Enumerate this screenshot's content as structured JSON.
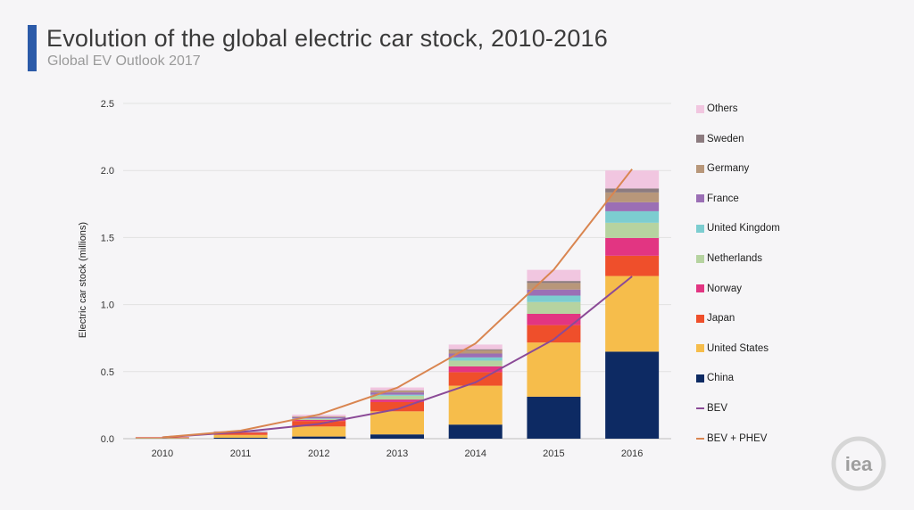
{
  "header": {
    "title": "Evolution of the global electric car stock, 2010-2016",
    "subtitle": "Global EV Outlook 2017"
  },
  "logo": {
    "text": "iea"
  },
  "chart_data": {
    "type": "bar",
    "stacked": true,
    "categories": [
      "2010",
      "2011",
      "2012",
      "2013",
      "2014",
      "2015",
      "2016"
    ],
    "ylabel": "Electric car stock (millions)",
    "xlabel": "",
    "ylim": [
      0,
      2.5
    ],
    "yticks": [
      "0.0",
      "0.5",
      "1.0",
      "1.5",
      "2.0",
      "2.5"
    ],
    "grid": true,
    "legend": "right",
    "series": [
      {
        "name": "China",
        "color": "#0d2a63",
        "values": [
          0.002,
          0.007,
          0.016,
          0.032,
          0.105,
          0.313,
          0.649
        ]
      },
      {
        "name": "United States",
        "color": "#f6bd4b",
        "values": [
          0.004,
          0.021,
          0.075,
          0.172,
          0.29,
          0.404,
          0.564
        ]
      },
      {
        "name": "Japan",
        "color": "#ef4f2b",
        "values": [
          0.004,
          0.017,
          0.041,
          0.069,
          0.101,
          0.13,
          0.151
        ]
      },
      {
        "name": "Norway",
        "color": "#e23582",
        "values": [
          0.0004,
          0.002,
          0.008,
          0.019,
          0.043,
          0.084,
          0.133
        ]
      },
      {
        "name": "Netherlands",
        "color": "#b6d3a0",
        "values": [
          0.0003,
          0.001,
          0.007,
          0.028,
          0.043,
          0.088,
          0.113
        ]
      },
      {
        "name": "United Kingdom",
        "color": "#7ccdd0",
        "values": [
          0.0003,
          0.001,
          0.004,
          0.008,
          0.024,
          0.048,
          0.086
        ]
      },
      {
        "name": "France",
        "color": "#9b6fb5",
        "values": [
          0.0003,
          0.003,
          0.009,
          0.017,
          0.029,
          0.045,
          0.067
        ]
      },
      {
        "name": "Germany",
        "color": "#b8977a",
        "values": [
          0.0003,
          0.002,
          0.005,
          0.012,
          0.024,
          0.049,
          0.073
        ]
      },
      {
        "name": "Sweden",
        "color": "#8c7b7f",
        "values": [
          0.0001,
          0.0002,
          0.001,
          0.004,
          0.008,
          0.015,
          0.03
        ]
      },
      {
        "name": "Others",
        "color": "#f1c6e0",
        "values": [
          0.001,
          0.003,
          0.013,
          0.021,
          0.035,
          0.083,
          0.134
        ]
      }
    ],
    "lines": [
      {
        "name": "BEV",
        "color": "#8b4a97",
        "values": [
          0.01,
          0.05,
          0.11,
          0.22,
          0.42,
          0.74,
          1.21
        ]
      },
      {
        "name": "BEV + PHEV",
        "color": "#d98550",
        "values": [
          0.01,
          0.06,
          0.18,
          0.38,
          0.71,
          1.26,
          2.01
        ]
      }
    ],
    "legend_order": [
      "Others",
      "Sweden",
      "Germany",
      "France",
      "United Kingdom",
      "Netherlands",
      "Norway",
      "Japan",
      "United States",
      "China",
      "BEV",
      "BEV + PHEV"
    ]
  }
}
